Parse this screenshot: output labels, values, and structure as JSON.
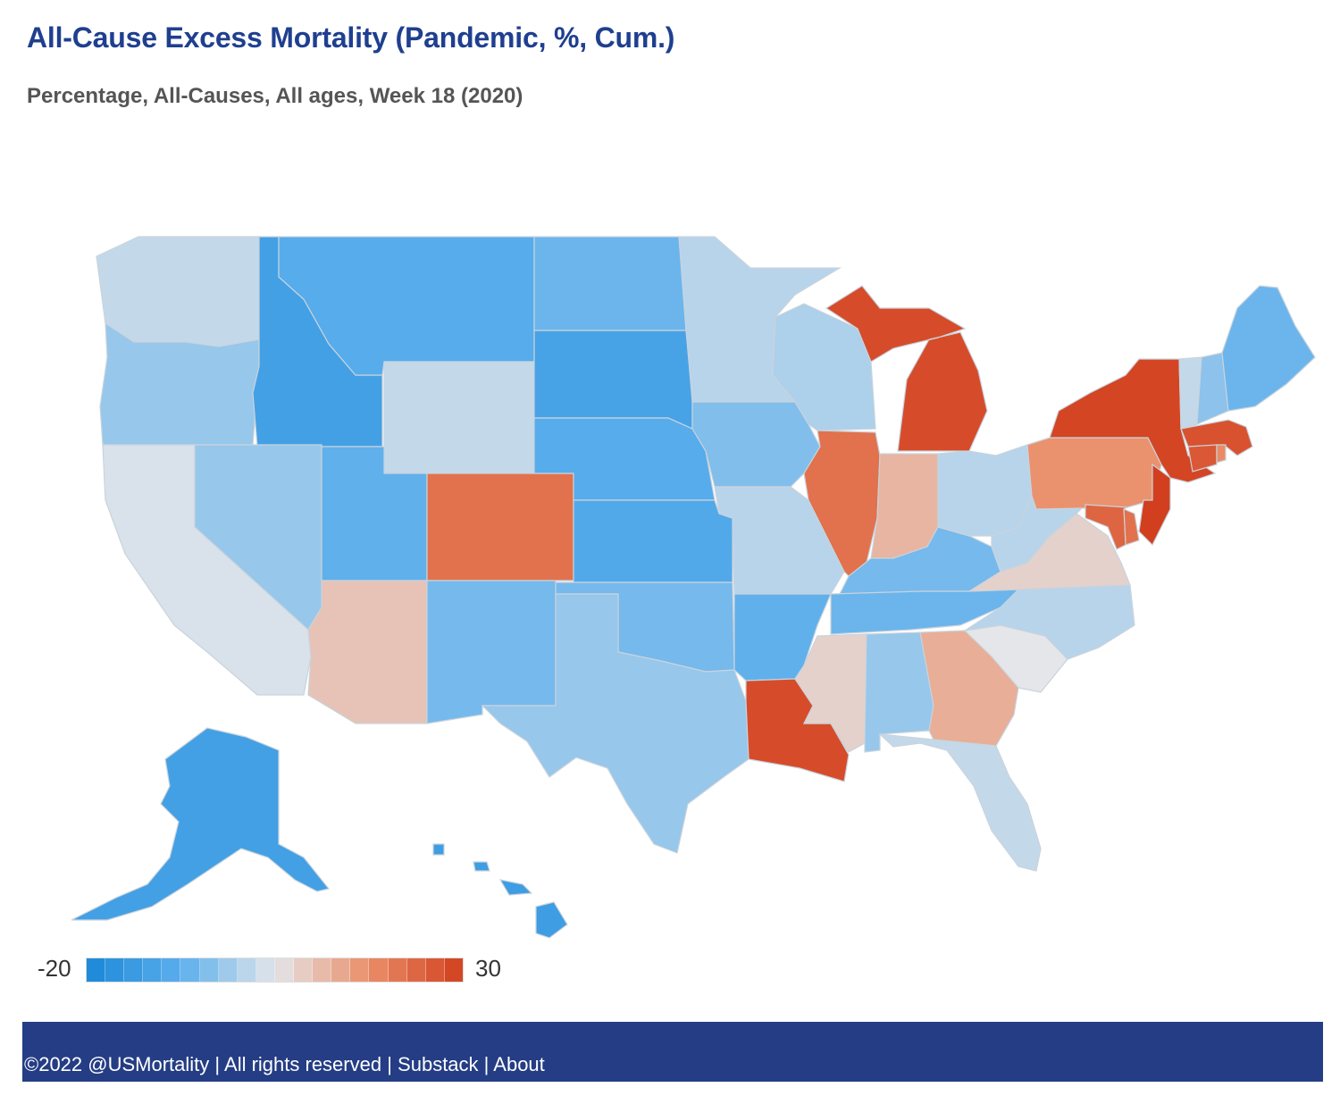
{
  "title": "All-Cause Excess Mortality (Pandemic, %, Cum.)",
  "subtitle": "Percentage, All-Causes, All ages, Week 18 (2020)",
  "legend": {
    "min_label": "-20",
    "max_label": "30",
    "min": -20,
    "max": 30,
    "colors": [
      "#1a87d8",
      "#5aaeec",
      "#e4e6ea",
      "#ea8e68",
      "#d23f1e"
    ]
  },
  "footer": {
    "copyright": "©2022 @USMortality",
    "rights": "All rights reserved",
    "sep": " | ",
    "substack": "Substack",
    "about": "About"
  },
  "chart_data": {
    "type": "choropleth",
    "title": "All-Cause Excess Mortality (Pandemic, %, Cum.)",
    "subtitle": "Percentage, All-Causes, All ages, Week 18 (2020)",
    "metric": "Excess mortality (%), cumulative",
    "color_range": [
      -20,
      30
    ],
    "states": [
      {
        "id": "WA",
        "name": "Washington",
        "value": 2
      },
      {
        "id": "OR",
        "name": "Oregon",
        "value": -2
      },
      {
        "id": "CA",
        "name": "California",
        "value": 4
      },
      {
        "id": "ID",
        "name": "Idaho",
        "value": -12
      },
      {
        "id": "NV",
        "name": "Nevada",
        "value": -2
      },
      {
        "id": "MT",
        "name": "Montana",
        "value": -8
      },
      {
        "id": "WY",
        "name": "Wyoming",
        "value": 2
      },
      {
        "id": "UT",
        "name": "Utah",
        "value": -7
      },
      {
        "id": "AZ",
        "name": "Arizona",
        "value": 10
      },
      {
        "id": "CO",
        "name": "Colorado",
        "value": 22
      },
      {
        "id": "NM",
        "name": "New Mexico",
        "value": -5
      },
      {
        "id": "ND",
        "name": "North Dakota",
        "value": -6
      },
      {
        "id": "SD",
        "name": "South Dakota",
        "value": -11
      },
      {
        "id": "NE",
        "name": "Nebraska",
        "value": -8
      },
      {
        "id": "KS",
        "name": "Kansas",
        "value": -9
      },
      {
        "id": "OK",
        "name": "Oklahoma",
        "value": -5
      },
      {
        "id": "TX",
        "name": "Texas",
        "value": -2
      },
      {
        "id": "MN",
        "name": "Minnesota",
        "value": 1
      },
      {
        "id": "IA",
        "name": "Iowa",
        "value": -4
      },
      {
        "id": "MO",
        "name": "Missouri",
        "value": 1
      },
      {
        "id": "AR",
        "name": "Arkansas",
        "value": -7
      },
      {
        "id": "LA",
        "name": "Louisiana",
        "value": 28
      },
      {
        "id": "WI",
        "name": "Wisconsin",
        "value": 0
      },
      {
        "id": "IL",
        "name": "Illinois",
        "value": 22
      },
      {
        "id": "MS",
        "name": "Mississippi",
        "value": 8
      },
      {
        "id": "MI",
        "name": "Michigan",
        "value": 28
      },
      {
        "id": "IN",
        "name": "Indiana",
        "value": 12
      },
      {
        "id": "KY",
        "name": "Kentucky",
        "value": -5
      },
      {
        "id": "TN",
        "name": "Tennessee",
        "value": -6
      },
      {
        "id": "AL",
        "name": "Alabama",
        "value": -2
      },
      {
        "id": "GA",
        "name": "Georgia",
        "value": 13
      },
      {
        "id": "FL",
        "name": "Florida",
        "value": 2
      },
      {
        "id": "SC",
        "name": "South Carolina",
        "value": 5
      },
      {
        "id": "NC",
        "name": "North Carolina",
        "value": 1
      },
      {
        "id": "VA",
        "name": "Virginia",
        "value": 8
      },
      {
        "id": "WV",
        "name": "West Virginia",
        "value": 1
      },
      {
        "id": "OH",
        "name": "Ohio",
        "value": 1
      },
      {
        "id": "PA",
        "name": "Pennsylvania",
        "value": 17
      },
      {
        "id": "NY",
        "name": "New York",
        "value": 29
      },
      {
        "id": "VT",
        "name": "Vermont",
        "value": 2
      },
      {
        "id": "NH",
        "name": "New Hampshire",
        "value": -3
      },
      {
        "id": "ME",
        "name": "Maine",
        "value": -6
      },
      {
        "id": "MA",
        "name": "Massachusetts",
        "value": 27
      },
      {
        "id": "CT",
        "name": "Connecticut",
        "value": 26
      },
      {
        "id": "RI",
        "name": "Rhode Island",
        "value": 18
      },
      {
        "id": "NJ",
        "name": "New Jersey",
        "value": 30
      },
      {
        "id": "DE",
        "name": "Delaware",
        "value": 22
      },
      {
        "id": "MD",
        "name": "Maryland",
        "value": 24
      },
      {
        "id": "AK",
        "name": "Alaska",
        "value": -12
      },
      {
        "id": "HI",
        "name": "Hawaii",
        "value": -13
      }
    ]
  }
}
